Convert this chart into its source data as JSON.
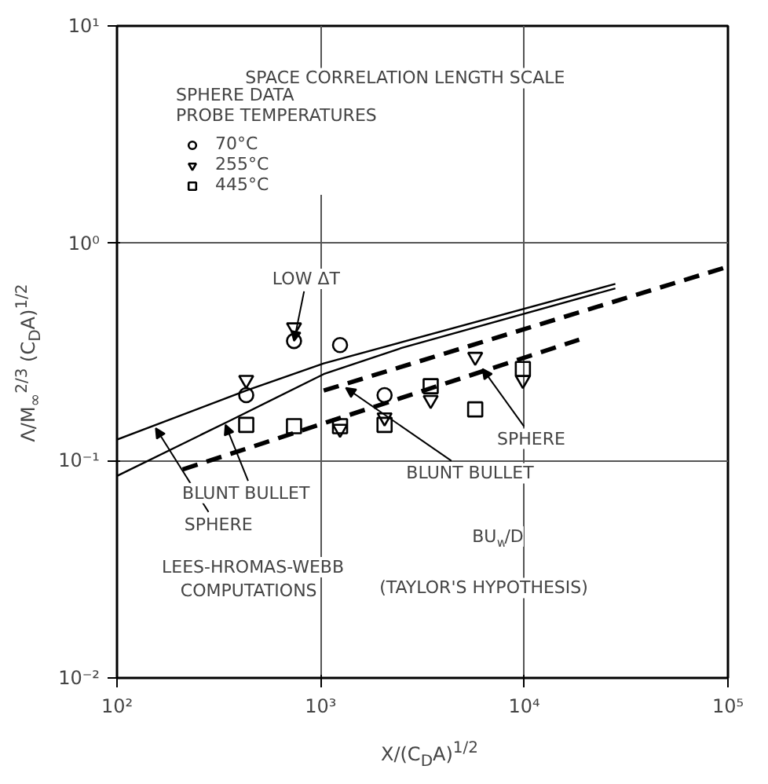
{
  "chart_data": {
    "type": "scatter",
    "title": "SPACE CORRELATION LENGTH SCALE",
    "xlabel": "X/(C$_{D}$A)$^{1/2}$",
    "ylabel": "Λ/M$_{∞}$$^{2/3}$ (C$_{D}$A)$^{1/2}$",
    "legend_title": "SPHERE DATA\nPROBE TEMPERATURES",
    "log": "xy",
    "xlim": [
      100,
      100000
    ],
    "ylim": [
      0.01,
      10
    ],
    "xticks": [
      {
        "value": 100,
        "label": "10²"
      },
      {
        "value": 1000,
        "label": "10³"
      },
      {
        "value": 10000,
        "label": "10⁴"
      },
      {
        "value": 100000,
        "label": "10⁵"
      }
    ],
    "yticks": [
      {
        "value": 0.01,
        "label": "10⁻²"
      },
      {
        "value": 0.1,
        "label": "10⁻¹"
      },
      {
        "value": 1,
        "label": "10⁰"
      },
      {
        "value": 10,
        "label": "10¹"
      }
    ],
    "grid": true,
    "legend": "top left",
    "series": [
      {
        "name": "70°C",
        "type": "scatter",
        "marker": "circle",
        "color": "#000000",
        "x": [
          431,
          740,
          1245,
          2060
        ],
        "values": [
          0.2,
          0.355,
          0.34,
          0.2
        ]
      },
      {
        "name": "255°C",
        "type": "scatter",
        "marker": "triangle",
        "color": "#000000",
        "x": [
          431,
          740,
          1245,
          2060,
          3470,
          5740,
          9840
        ],
        "values": [
          0.235,
          0.41,
          0.14,
          0.158,
          0.19,
          0.3,
          0.235
        ]
      },
      {
        "name": "445°C",
        "type": "scatter",
        "marker": "square",
        "color": "#000000",
        "x": [
          431,
          740,
          1245,
          2060,
          3470,
          5740,
          9840
        ],
        "values": [
          0.146,
          0.144,
          0.144,
          0.146,
          0.22,
          0.172,
          0.264
        ]
      },
      {
        "type": "line",
        "line_style": "solid",
        "color": "#000000",
        "x": [
          100,
          431,
          1035,
          28000
        ],
        "values": [
          0.125,
          0.21,
          0.28,
          0.65
        ]
      },
      {
        "type": "line",
        "line_style": "solid",
        "color": "#000000",
        "x": [
          100,
          360,
          1035,
          2500,
          28000
        ],
        "values": [
          0.085,
          0.153,
          0.25,
          0.33,
          0.62
        ]
      },
      {
        "type": "line",
        "line_style": "dashed",
        "color": "#000000",
        "x": [
          1035,
          100000
        ],
        "values": [
          0.21,
          0.78
        ]
      },
      {
        "type": "line",
        "line_style": "dashed",
        "color": "#000000",
        "x": [
          210,
          18600
        ],
        "values": [
          0.091,
          0.36
        ]
      }
    ],
    "annotations": [
      {
        "text": "LOW ΔT",
        "x": 740,
        "y": 0.355
      },
      {
        "text": "SPHERE",
        "x": 155,
        "y": 0.141
      },
      {
        "text": "BLUNT BULLET",
        "x": 341,
        "y": 0.146
      },
      {
        "text": "BLUNT BULLET",
        "x": 1330,
        "y": 0.216
      },
      {
        "text": "SPHERE",
        "x": 6240,
        "y": 0.264
      },
      "LEES-HROMAS-WEBB\nCOMPUTATIONS",
      "BU$_{w}$/D",
      "(TAYLOR'S HYPOTHESIS)"
    ]
  }
}
